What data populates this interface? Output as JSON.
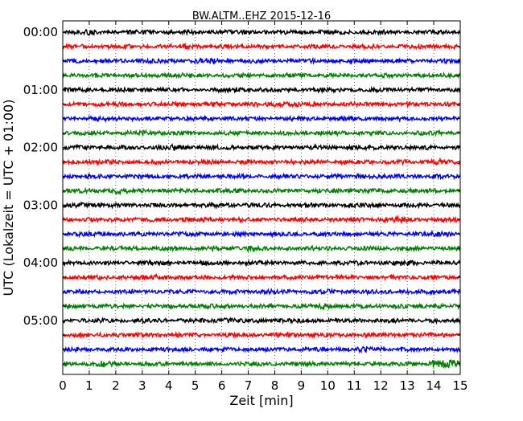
{
  "chart_data": {
    "type": "line",
    "title": "BW.ALTM..EHZ 2015-12-16",
    "xlabel": "Zeit  [min]",
    "ylabel": "UTC (Lokalzeit = UTC + 01:00)",
    "xlim": [
      0,
      15
    ],
    "x_ticks": [
      "0",
      "1",
      "2",
      "3",
      "4",
      "5",
      "6",
      "7",
      "8",
      "9",
      "10",
      "11",
      "12",
      "13",
      "14",
      "15"
    ],
    "y_tick_labels": [
      "00:00",
      "01:00",
      "02:00",
      "03:00",
      "04:00",
      "05:00"
    ],
    "vertical_grid": true,
    "grid_style": "dotted",
    "trace_interval_minutes": 15,
    "trace_colors": [
      "#000000",
      "#ff0000",
      "#0000ff",
      "#008000"
    ],
    "traces": [
      {
        "start": "00:00",
        "color": "#000000"
      },
      {
        "start": "00:15",
        "color": "#ff0000"
      },
      {
        "start": "00:30",
        "color": "#0000ff"
      },
      {
        "start": "00:45",
        "color": "#008000"
      },
      {
        "start": "01:00",
        "color": "#000000"
      },
      {
        "start": "01:15",
        "color": "#ff0000"
      },
      {
        "start": "01:30",
        "color": "#0000ff"
      },
      {
        "start": "01:45",
        "color": "#008000"
      },
      {
        "start": "02:00",
        "color": "#000000"
      },
      {
        "start": "02:15",
        "color": "#ff0000"
      },
      {
        "start": "02:30",
        "color": "#0000ff"
      },
      {
        "start": "02:45",
        "color": "#008000"
      },
      {
        "start": "03:00",
        "color": "#000000"
      },
      {
        "start": "03:15",
        "color": "#ff0000"
      },
      {
        "start": "03:30",
        "color": "#0000ff"
      },
      {
        "start": "03:45",
        "color": "#008000"
      },
      {
        "start": "04:00",
        "color": "#000000"
      },
      {
        "start": "04:15",
        "color": "#ff0000"
      },
      {
        "start": "04:30",
        "color": "#0000ff"
      },
      {
        "start": "04:45",
        "color": "#008000"
      },
      {
        "start": "05:00",
        "color": "#000000"
      },
      {
        "start": "05:15",
        "color": "#ff0000"
      },
      {
        "start": "05:30",
        "color": "#0000ff"
      },
      {
        "start": "05:45",
        "color": "#008000"
      }
    ]
  }
}
